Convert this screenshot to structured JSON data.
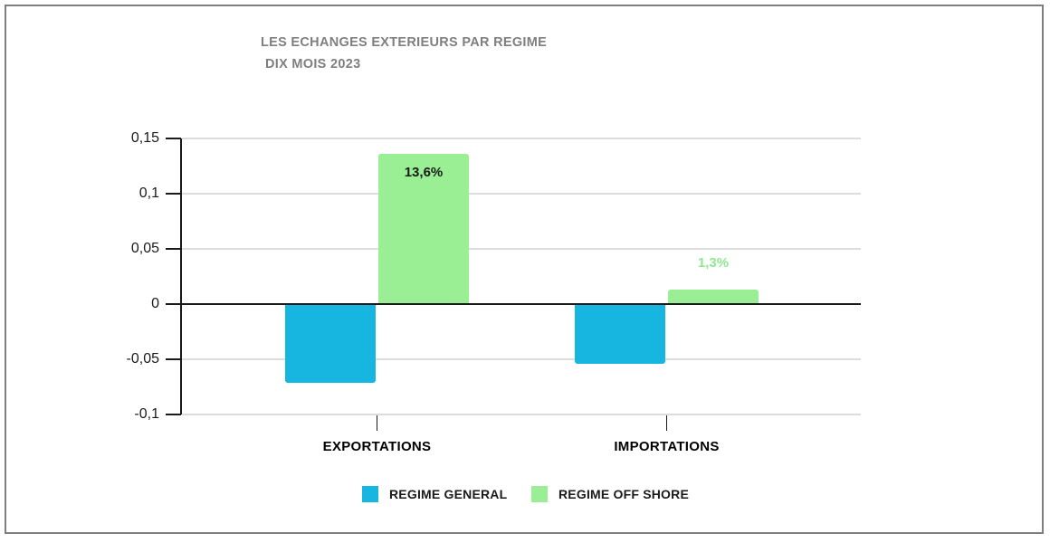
{
  "chart_data": {
    "type": "bar",
    "title": "LES ECHANGES EXTERIEURS PAR REGIME",
    "subtitle": "DIX MOIS 2023",
    "categories": [
      "EXPORTATIONS",
      "IMPORTATIONS"
    ],
    "series": [
      {
        "name": "REGIME GENERAL",
        "color": "#16B6E0",
        "values": [
          -0.071,
          -0.054
        ],
        "labels": [
          null,
          null
        ]
      },
      {
        "name": "REGIME OFF SHORE",
        "color": "#9AEE94",
        "values": [
          0.136,
          0.013
        ],
        "labels": [
          "13,6%",
          "1,3%"
        ],
        "label_colors": [
          "#1A1A1A",
          "#8EE88E"
        ]
      }
    ],
    "ylim": [
      -0.1,
      0.15
    ],
    "ytick_values": [
      0.15,
      0.1,
      0.05,
      0,
      -0.05,
      -0.1
    ],
    "ytick_labels": [
      "0,15",
      "0,1",
      "0,05",
      "0",
      "-0,05",
      "-0,1"
    ],
    "grid": true,
    "legend_position": "bottom",
    "xlabel": "",
    "ylabel": ""
  }
}
